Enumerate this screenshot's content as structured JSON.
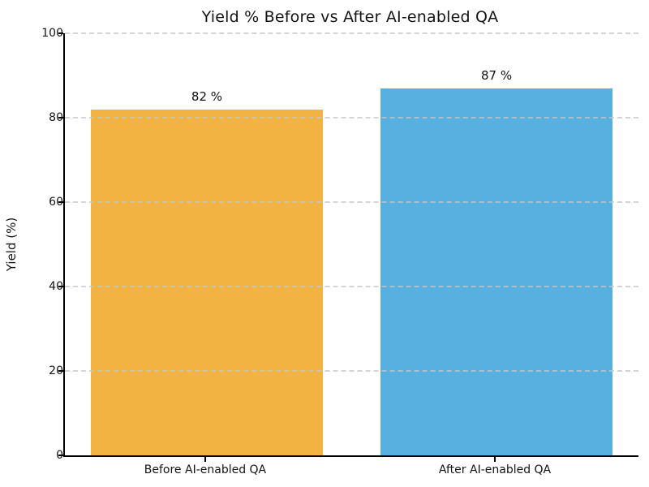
{
  "chart_data": {
    "type": "bar",
    "title": "Yield % Before vs After AI-enabled QA",
    "xlabel": "",
    "ylabel": "Yield (%)",
    "categories": [
      "Before AI-enabled QA",
      "After AI-enabled QA"
    ],
    "values": [
      82,
      87
    ],
    "bar_value_labels": [
      "82 %",
      "87 %"
    ],
    "bar_colors": [
      "#F2B342",
      "#57B0E0"
    ],
    "ylim": [
      0,
      100
    ],
    "yticks": [
      0,
      20,
      40,
      60,
      80,
      100
    ],
    "grid": "horizontal-dashed",
    "gridline_color": "#c5c5c5",
    "legend": "none",
    "background_color": "#ffffff"
  }
}
